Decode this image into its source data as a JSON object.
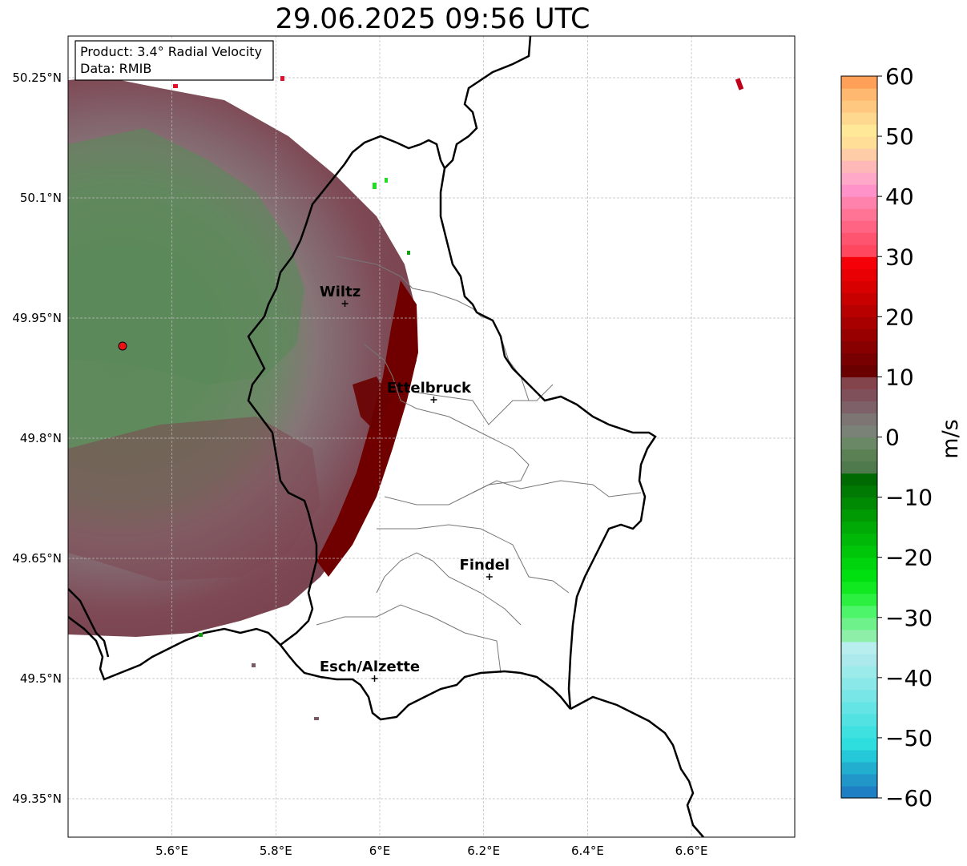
{
  "title": "29.06.2025 09:56 UTC",
  "info_box": {
    "product_line": "Product: 3.4° Radial Velocity",
    "data_line": "Data: RMIB"
  },
  "map": {
    "lon_range": [
      5.4,
      6.8
    ],
    "lat_range": [
      49.3,
      50.3
    ],
    "x_ticks": [
      {
        "value": 5.6,
        "label": "5.6°E"
      },
      {
        "value": 5.8,
        "label": "5.8°E"
      },
      {
        "value": 6.0,
        "label": "6°E"
      },
      {
        "value": 6.2,
        "label": "6.2°E"
      },
      {
        "value": 6.4,
        "label": "6.4°E"
      },
      {
        "value": 6.6,
        "label": "6.6°E"
      }
    ],
    "y_ticks": [
      {
        "value": 50.25,
        "label": "50.25°N"
      },
      {
        "value": 50.1,
        "label": "50.1°N"
      },
      {
        "value": 49.95,
        "label": "49.95°N"
      },
      {
        "value": 49.8,
        "label": "49.8°N"
      },
      {
        "value": 49.65,
        "label": "49.65°N"
      },
      {
        "value": 49.5,
        "label": "49.5°N"
      },
      {
        "value": 49.35,
        "label": "49.35°N"
      }
    ],
    "grid": true,
    "radar_site": {
      "lon": 5.505,
      "lat": 49.915
    },
    "cities": [
      {
        "name": "Wiltz",
        "lon": 5.933,
        "lat": 49.968
      },
      {
        "name": "Ettelbruck",
        "lon": 6.104,
        "lat": 49.848
      },
      {
        "name": "Findel",
        "lon": 6.211,
        "lat": 49.627
      },
      {
        "name": "Esch/Alzette",
        "lon": 5.99,
        "lat": 49.5
      }
    ]
  },
  "colorbar": {
    "label": "m/s",
    "vmin": -60,
    "vmax": 60,
    "ticks": [
      {
        "value": 60,
        "label": "60"
      },
      {
        "value": 50,
        "label": "50"
      },
      {
        "value": 40,
        "label": "40"
      },
      {
        "value": 30,
        "label": "30"
      },
      {
        "value": 20,
        "label": "20"
      },
      {
        "value": 10,
        "label": "10"
      },
      {
        "value": 0,
        "label": "0"
      },
      {
        "value": -10,
        "label": "−10"
      },
      {
        "value": -20,
        "label": "−20"
      },
      {
        "value": -30,
        "label": "−30"
      },
      {
        "value": -40,
        "label": "−40"
      },
      {
        "value": -50,
        "label": "−50"
      },
      {
        "value": -60,
        "label": "−60"
      }
    ],
    "segments": [
      {
        "from": -60,
        "to": -58,
        "color": "#1f7fc4"
      },
      {
        "from": -58,
        "to": -56,
        "color": "#2196c8"
      },
      {
        "from": -56,
        "to": -54,
        "color": "#22aecf"
      },
      {
        "from": -54,
        "to": -52,
        "color": "#25c8d8"
      },
      {
        "from": -52,
        "to": -50,
        "color": "#2edede"
      },
      {
        "from": -50,
        "to": -48,
        "color": "#3ee0e0"
      },
      {
        "from": -48,
        "to": -46,
        "color": "#52e2e2"
      },
      {
        "from": -46,
        "to": -44,
        "color": "#64e4e4"
      },
      {
        "from": -44,
        "to": -42,
        "color": "#78e6e6"
      },
      {
        "from": -42,
        "to": -40,
        "color": "#8ae8e8"
      },
      {
        "from": -40,
        "to": -38,
        "color": "#9cebeb"
      },
      {
        "from": -38,
        "to": -36,
        "color": "#ace9ec"
      },
      {
        "from": -36,
        "to": -34,
        "color": "#b8eeee"
      },
      {
        "from": -34,
        "to": -32,
        "color": "#8ef0a8"
      },
      {
        "from": -32,
        "to": -30,
        "color": "#6ef08a"
      },
      {
        "from": -30,
        "to": -28,
        "color": "#4cf56a"
      },
      {
        "from": -28,
        "to": -26,
        "color": "#2cf040"
      },
      {
        "from": -26,
        "to": -24,
        "color": "#10e820"
      },
      {
        "from": -24,
        "to": -22,
        "color": "#00e010"
      },
      {
        "from": -22,
        "to": -20,
        "color": "#00d40c"
      },
      {
        "from": -20,
        "to": -18,
        "color": "#00c60a"
      },
      {
        "from": -18,
        "to": -16,
        "color": "#00b808"
      },
      {
        "from": -16,
        "to": -14,
        "color": "#00aa06"
      },
      {
        "from": -14,
        "to": -12,
        "color": "#009a05"
      },
      {
        "from": -12,
        "to": -10,
        "color": "#008a04"
      },
      {
        "from": -10,
        "to": -8,
        "color": "#007a03"
      },
      {
        "from": -8,
        "to": -6,
        "color": "#006a02"
      },
      {
        "from": -6,
        "to": -4,
        "color": "#4e7a4e"
      },
      {
        "from": -4,
        "to": -2,
        "color": "#5a8054"
      },
      {
        "from": -2,
        "to": 0,
        "color": "#6a8866"
      },
      {
        "from": 0,
        "to": 2,
        "color": "#7a8278"
      },
      {
        "from": 2,
        "to": 4,
        "color": "#7d7474"
      },
      {
        "from": 4,
        "to": 6,
        "color": "#7e6068"
      },
      {
        "from": 6,
        "to": 8,
        "color": "#80505a"
      },
      {
        "from": 8,
        "to": 10,
        "color": "#84444c"
      },
      {
        "from": 10,
        "to": 12,
        "color": "#6a0000"
      },
      {
        "from": 12,
        "to": 14,
        "color": "#780000"
      },
      {
        "from": 14,
        "to": 16,
        "color": "#880000"
      },
      {
        "from": 16,
        "to": 18,
        "color": "#980000"
      },
      {
        "from": 18,
        "to": 20,
        "color": "#a80000"
      },
      {
        "from": 20,
        "to": 22,
        "color": "#b80000"
      },
      {
        "from": 22,
        "to": 24,
        "color": "#c80000"
      },
      {
        "from": 24,
        "to": 26,
        "color": "#d80000"
      },
      {
        "from": 26,
        "to": 28,
        "color": "#e80004"
      },
      {
        "from": 28,
        "to": 30,
        "color": "#f50008"
      },
      {
        "from": 30,
        "to": 32,
        "color": "#ff4860"
      },
      {
        "from": 32,
        "to": 34,
        "color": "#ff5470"
      },
      {
        "from": 34,
        "to": 36,
        "color": "#ff6482"
      },
      {
        "from": 36,
        "to": 38,
        "color": "#ff7494"
      },
      {
        "from": 38,
        "to": 40,
        "color": "#ff82ac"
      },
      {
        "from": 40,
        "to": 42,
        "color": "#ff92c8"
      },
      {
        "from": 42,
        "to": 44,
        "color": "#ffa8c8"
      },
      {
        "from": 44,
        "to": 46,
        "color": "#ffb8b8"
      },
      {
        "from": 46,
        "to": 48,
        "color": "#ffcca8"
      },
      {
        "from": 48,
        "to": 50,
        "color": "#ffde98"
      },
      {
        "from": 50,
        "to": 52,
        "color": "#ffe898"
      },
      {
        "from": 52,
        "to": 54,
        "color": "#ffd890"
      },
      {
        "from": 54,
        "to": 56,
        "color": "#ffc880"
      },
      {
        "from": 56,
        "to": 58,
        "color": "#ffb870"
      },
      {
        "from": 58,
        "to": 60,
        "color": "#ffa058"
      }
    ]
  }
}
